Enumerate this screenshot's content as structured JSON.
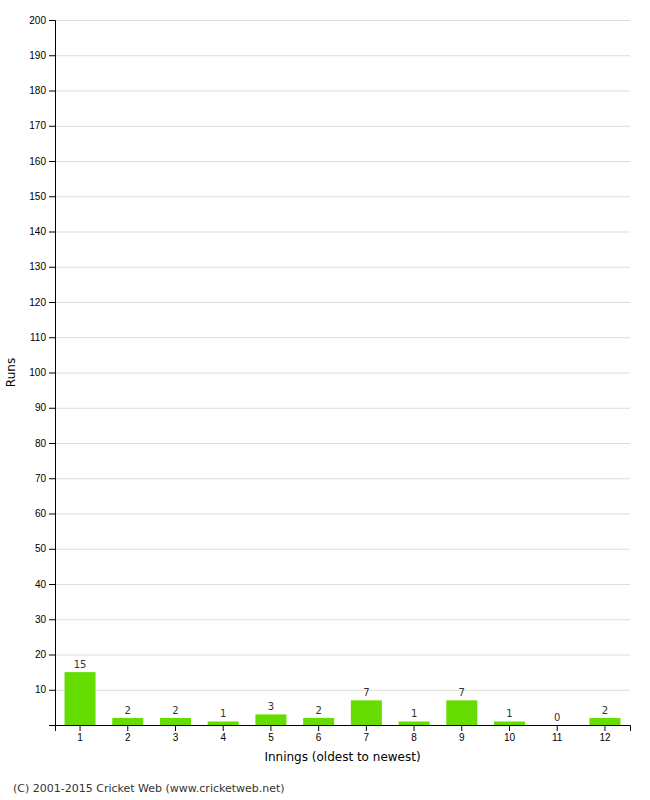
{
  "chart_data": {
    "type": "bar",
    "xlabel": "Innings (oldest to newest)",
    "ylabel": "Runs",
    "categories": [
      "1",
      "2",
      "3",
      "4",
      "5",
      "6",
      "7",
      "8",
      "9",
      "10",
      "11",
      "12"
    ],
    "values": [
      15,
      2,
      2,
      1,
      3,
      2,
      7,
      1,
      7,
      1,
      0,
      2
    ],
    "color": "#66dd00",
    "ylim": [
      0,
      200
    ],
    "yticks": [
      10,
      20,
      30,
      40,
      50,
      60,
      70,
      80,
      90,
      100,
      110,
      120,
      130,
      140,
      150,
      160,
      170,
      180,
      190,
      200
    ],
    "grid": true,
    "data_labels": true,
    "annotations": [
      "(C) 2001-2015 Cricket Web (www.cricketweb.net)"
    ]
  }
}
